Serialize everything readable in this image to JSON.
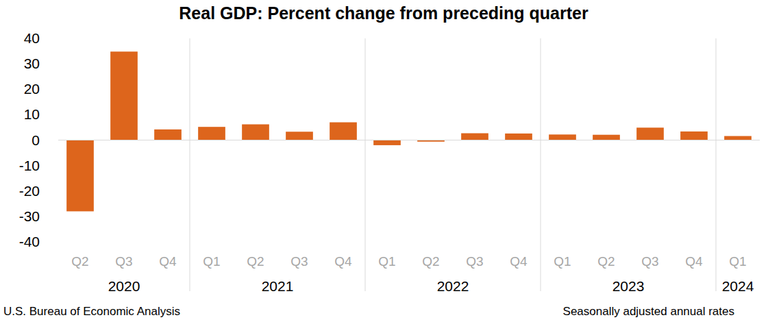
{
  "chart_data": {
    "type": "bar",
    "title": "Real GDP:  Percent change from preceding quarter",
    "categories": [
      "Q2",
      "Q3",
      "Q4",
      "Q1",
      "Q2",
      "Q3",
      "Q4",
      "Q1",
      "Q2",
      "Q3",
      "Q4",
      "Q1",
      "Q2",
      "Q3",
      "Q4",
      "Q1"
    ],
    "years": [
      "2020",
      "2020",
      "2020",
      "2021",
      "2021",
      "2021",
      "2021",
      "2022",
      "2022",
      "2022",
      "2022",
      "2023",
      "2023",
      "2023",
      "2023",
      "2024"
    ],
    "values": [
      -28.0,
      34.8,
      4.2,
      5.2,
      6.2,
      3.3,
      7.0,
      -2.0,
      -0.6,
      2.7,
      2.6,
      2.2,
      2.1,
      4.9,
      3.4,
      1.6
    ],
    "color": "#dd651c",
    "ylim": [
      -40,
      40
    ],
    "yticks": [
      -40,
      -30,
      -20,
      -10,
      0,
      10,
      20,
      30,
      40
    ],
    "grid": false,
    "source": "U.S. Bureau of Economic Analysis",
    "note": "Seasonally adjusted annual rates"
  }
}
